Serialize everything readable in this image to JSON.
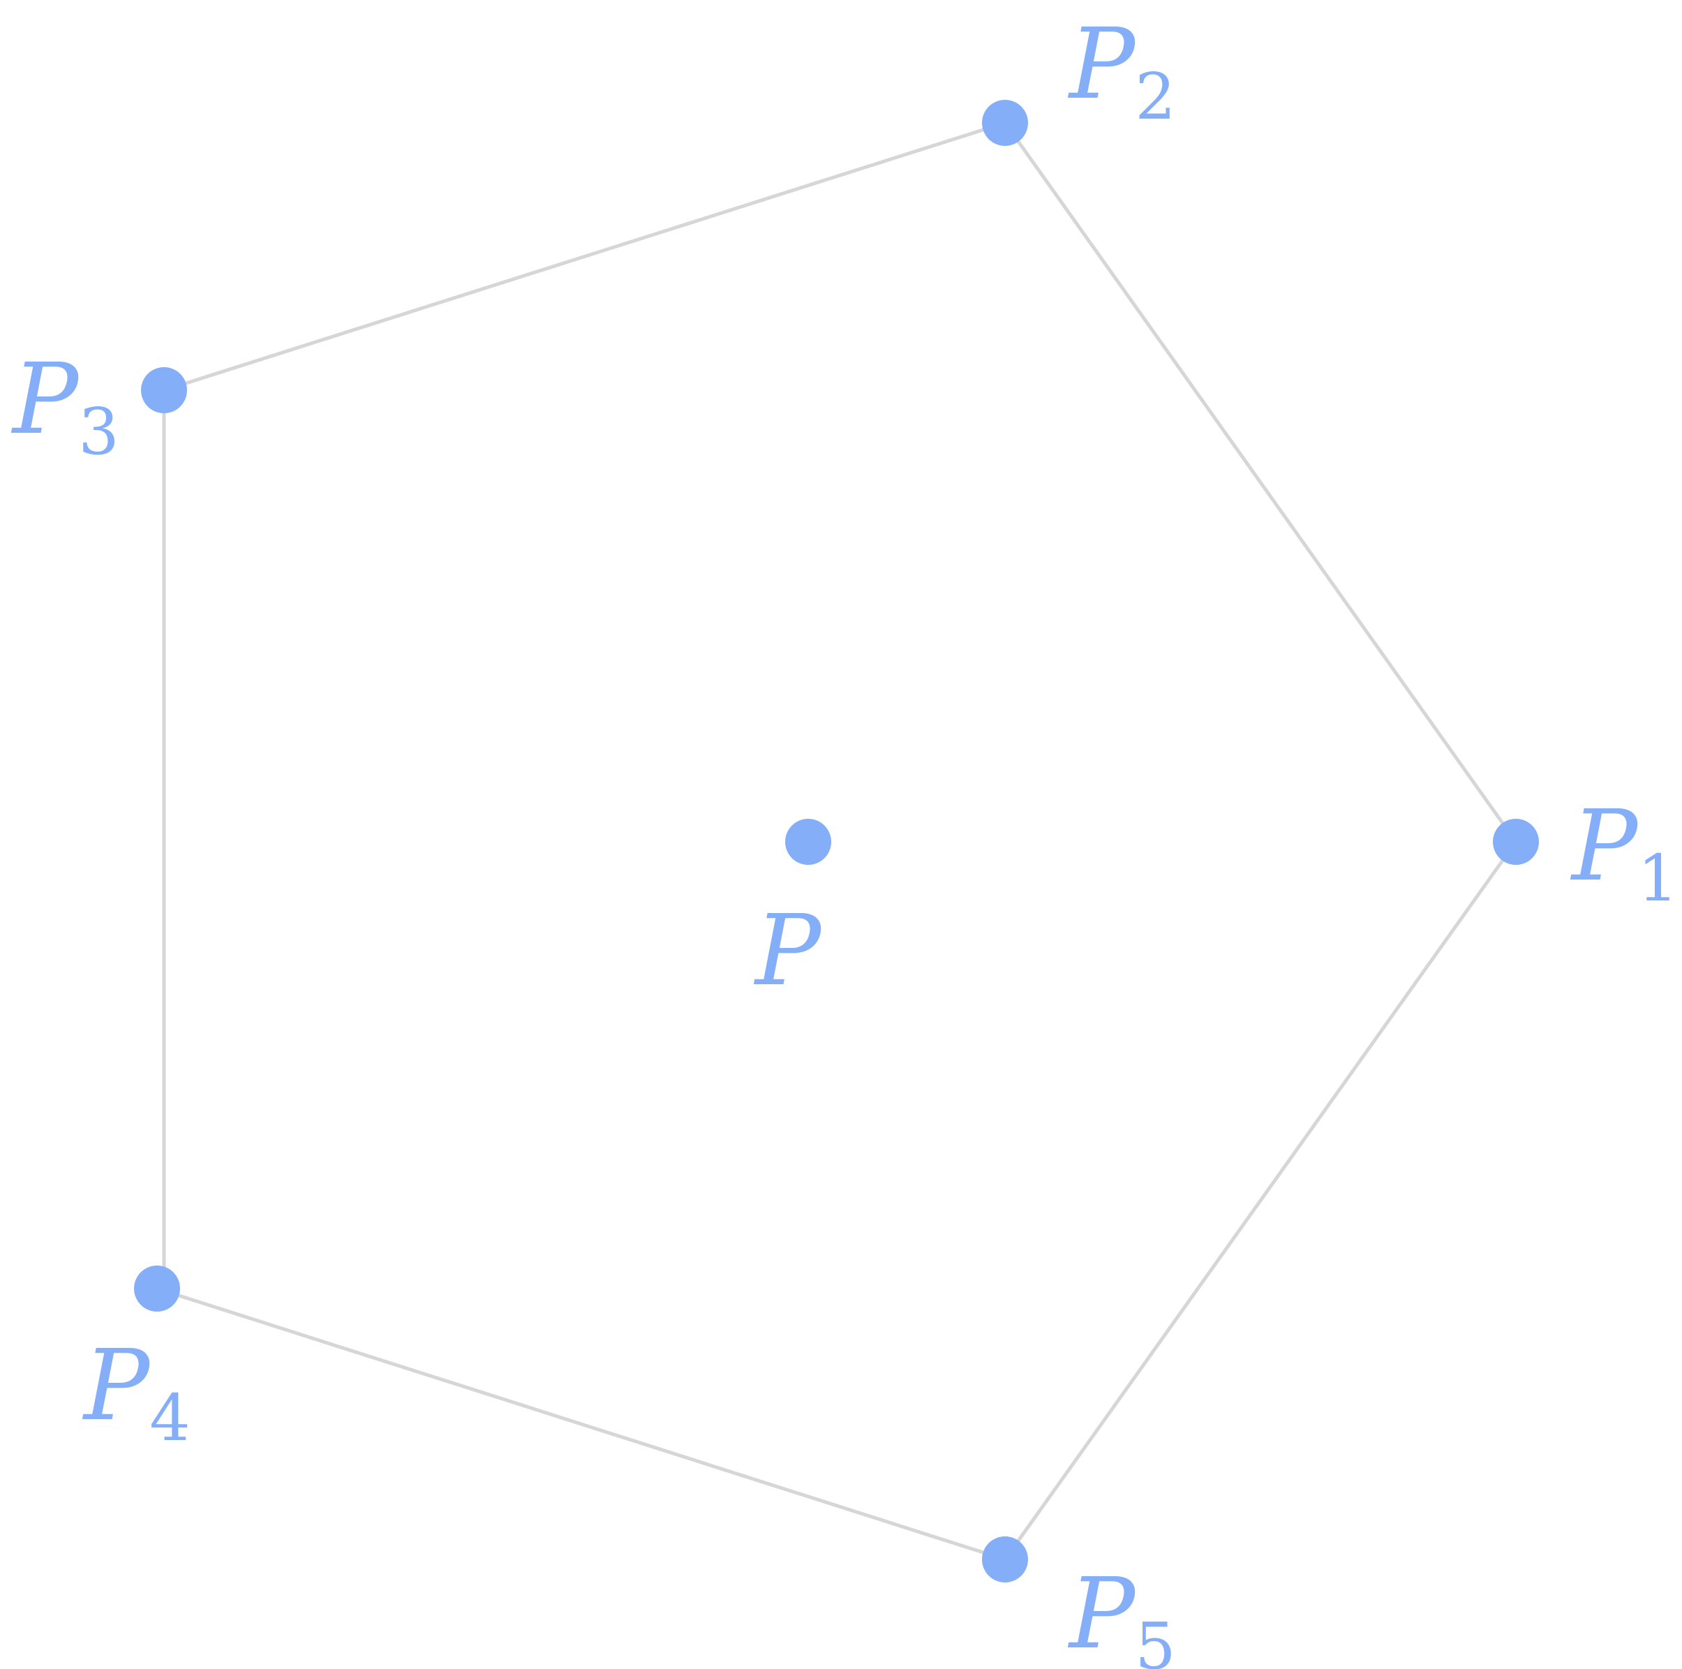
{
  "diagram": {
    "colors": {
      "point": "#85aef9",
      "label": "#85aef9",
      "edge": "#d6d6d6",
      "background": "#ffffff"
    },
    "center_point": {
      "name": "P",
      "subscript": ""
    },
    "vertices": [
      {
        "name": "P",
        "subscript": "1"
      },
      {
        "name": "P",
        "subscript": "2"
      },
      {
        "name": "P",
        "subscript": "3"
      },
      {
        "name": "P",
        "subscript": "4"
      },
      {
        "name": "P",
        "subscript": "5"
      }
    ],
    "edges": [
      [
        "P1",
        "P2"
      ],
      [
        "P2",
        "P3"
      ],
      [
        "P3",
        "P4"
      ],
      [
        "P4",
        "P5"
      ],
      [
        "P5",
        "P1"
      ]
    ]
  }
}
